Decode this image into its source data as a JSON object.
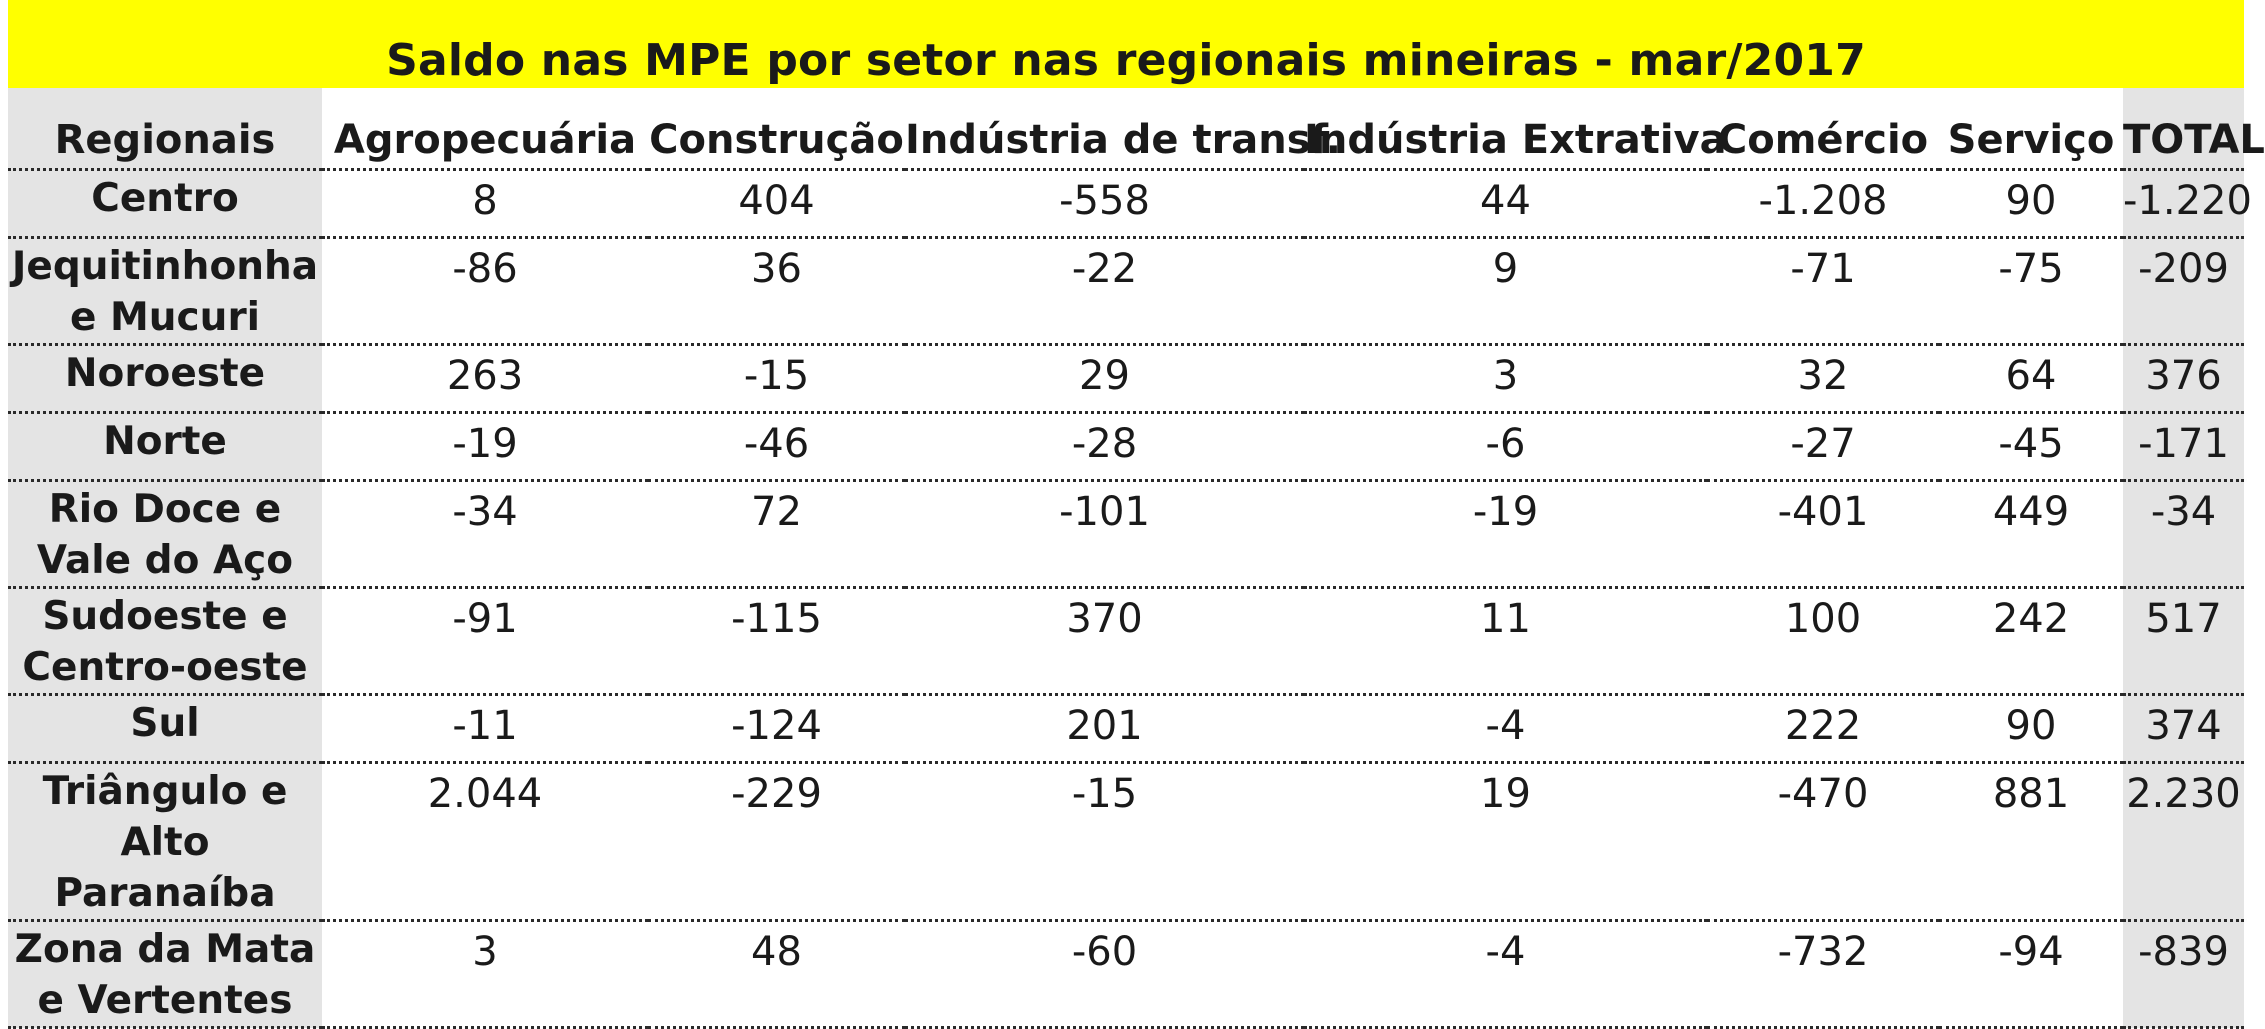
{
  "title": "Saldo nas MPE por setor nas regionais mineiras - mar/2017",
  "headers": [
    "Regionais",
    "Agropecuária",
    "Construção",
    "Indústria de transf.",
    "Indústria Extrativa",
    "Comércio",
    "Serviço",
    "TOTAL"
  ],
  "rows": [
    {
      "region_lines": [
        "Centro"
      ],
      "values": [
        "8",
        "404",
        "-558",
        "44",
        "-1.208",
        "90"
      ],
      "total": "-1.220"
    },
    {
      "region_lines": [
        "Jequitinhonha",
        "e Mucuri"
      ],
      "values": [
        "-86",
        "36",
        "-22",
        "9",
        "-71",
        "-75"
      ],
      "total": "-209"
    },
    {
      "region_lines": [
        "Noroeste"
      ],
      "values": [
        "263",
        "-15",
        "29",
        "3",
        "32",
        "64"
      ],
      "total": "376"
    },
    {
      "region_lines": [
        "Norte"
      ],
      "values": [
        "-19",
        "-46",
        "-28",
        "-6",
        "-27",
        "-45"
      ],
      "total": "-171"
    },
    {
      "region_lines": [
        "Rio Doce e",
        "Vale do Aço"
      ],
      "values": [
        "-34",
        "72",
        "-101",
        "-19",
        "-401",
        "449"
      ],
      "total": "-34"
    },
    {
      "region_lines": [
        "Sudoeste e",
        "Centro-oeste"
      ],
      "values": [
        "-91",
        "-115",
        "370",
        "11",
        "100",
        "242"
      ],
      "total": "517"
    },
    {
      "region_lines": [
        "Sul"
      ],
      "values": [
        "-11",
        "-124",
        "201",
        "-4",
        "222",
        "90"
      ],
      "total": "374"
    },
    {
      "region_lines": [
        "Triângulo e",
        "Alto",
        "Paranaíba"
      ],
      "values": [
        "2.044",
        "-229",
        "-15",
        "19",
        "-470",
        "881"
      ],
      "total": "2.230"
    },
    {
      "region_lines": [
        "Zona da Mata",
        "e Vertentes"
      ],
      "values": [
        "3",
        "48",
        "-60",
        "-4",
        "-732",
        "-94"
      ],
      "total": "-839"
    }
  ],
  "colors": {
    "title_background": "#ffff00",
    "label_column_background": "#e4e4e4",
    "text": "#1a1a1a"
  }
}
